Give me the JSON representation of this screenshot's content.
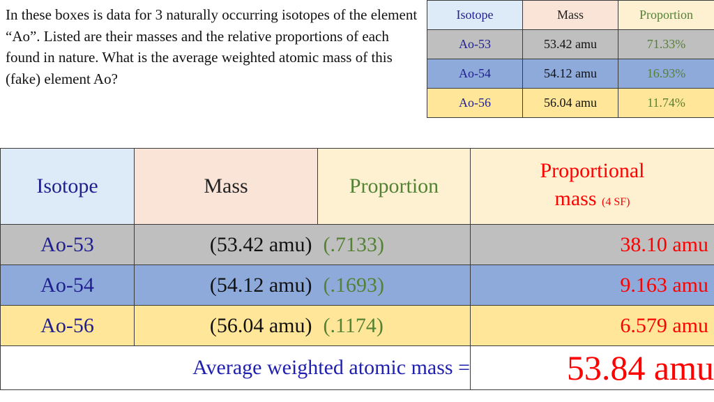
{
  "question": "In these boxes is data for 3 naturally occurring isotopes of the element “Ao”.  Listed are their masses and the relative proportions of each found in nature.  What is the average weighted atomic mass of this (fake) element Ao?",
  "small_table": {
    "headers": {
      "isotope": "Isotope",
      "mass": "Mass",
      "proportion": "Proportion"
    },
    "rows": [
      {
        "isotope": "Ao-53",
        "mass": "53.42 amu",
        "proportion": "71.33%"
      },
      {
        "isotope": "Ao-54",
        "mass": "54.12 amu",
        "proportion": "16.93%"
      },
      {
        "isotope": "Ao-56",
        "mass": "56.04 amu",
        "proportion": "11.74%"
      }
    ]
  },
  "big_table": {
    "headers": {
      "isotope": "Isotope",
      "mass": "Mass",
      "proportion": "Proportion",
      "proportional_mass_line1": "Proportional",
      "proportional_mass_line2": "mass",
      "proportional_mass_note": "(4 SF)"
    },
    "rows": [
      {
        "isotope": "Ao-53",
        "mass": "(53.42 amu)",
        "proportion": "(.7133)",
        "proportional_mass": "38.10 amu"
      },
      {
        "isotope": "Ao-54",
        "mass": "(54.12 amu)",
        "proportion": "(.1693)",
        "proportional_mass": "9.163 amu"
      },
      {
        "isotope": "Ao-56",
        "mass": "(56.04 amu)",
        "proportion": "(.1174)",
        "proportional_mass": "6.579 amu"
      }
    ],
    "average_label": "Average weighted atomic mass =",
    "average_value": "53.84 amu"
  },
  "colors": {
    "isotope_text": "#1f1f8f",
    "proportion_text": "#548235",
    "result_text": "#ff0000",
    "row_ao53": "#bfbfbf",
    "row_ao54": "#8eaadb",
    "row_ao56": "#ffe699"
  }
}
